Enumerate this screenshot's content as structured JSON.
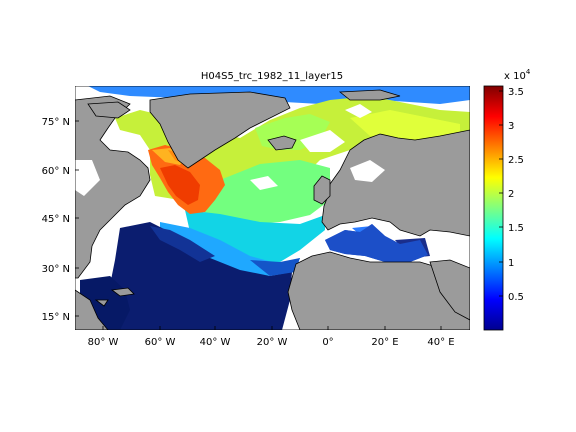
{
  "title": "H04S5_trc_1982_11_layer15",
  "axes": {
    "lon_ticks": [
      "80° W",
      "60° W",
      "40° W",
      "20° W",
      "0°",
      "20° E",
      "40° E"
    ],
    "lat_ticks": [
      "75° N",
      "60° N",
      "45° N",
      "30° N",
      "15° N"
    ],
    "lon_range": [
      -90,
      50
    ],
    "lat_range": [
      10,
      85
    ]
  },
  "colorbar": {
    "multiplier": "x 10",
    "exponent": "4",
    "ticks": [
      "3.5",
      "3",
      "2.5",
      "2",
      "1.5",
      "1",
      "0.5"
    ],
    "range": [
      0,
      3.55
    ],
    "colormap": "jet"
  },
  "colors": {
    "land": "#9b9b9b",
    "missing": "#ffffff",
    "coast": "#000000"
  }
}
